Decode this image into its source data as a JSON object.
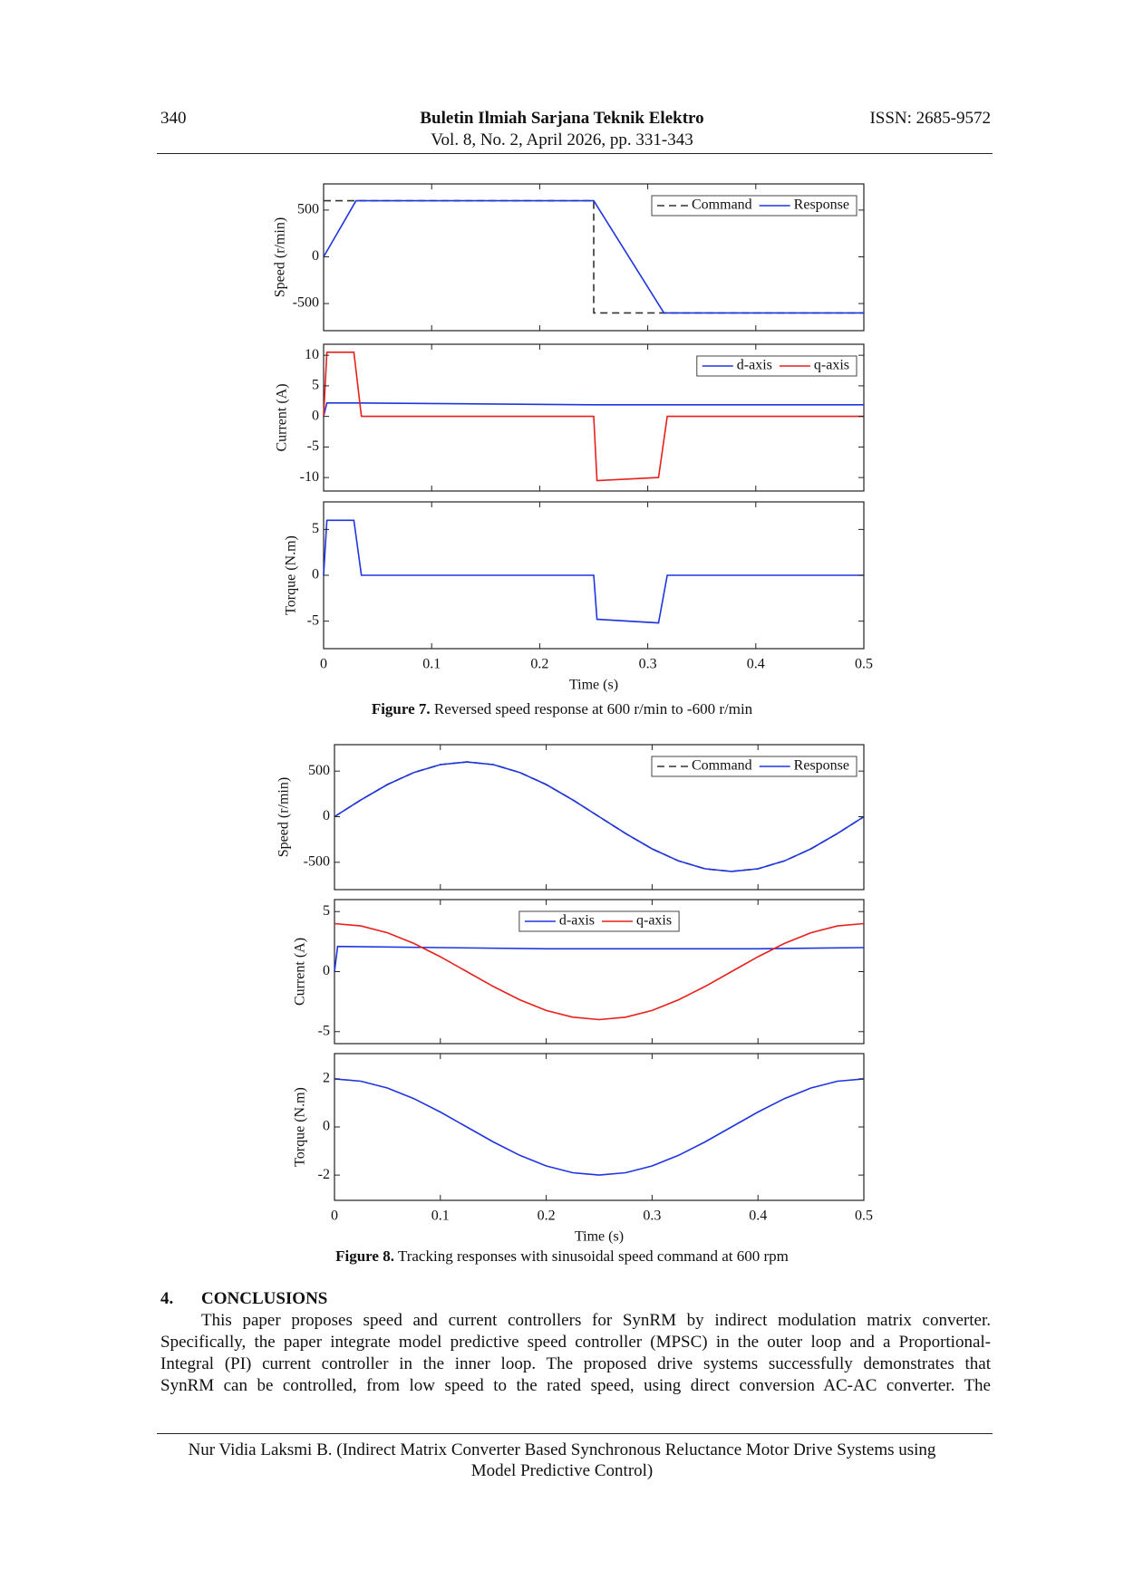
{
  "header": {
    "page": "340",
    "journal": "Buletin Ilmiah Sarjana Teknik Elektro",
    "issn": "ISSN: 2685-9572",
    "volume": "Vol. 8, No. 2, April 2026, pp. 331-343"
  },
  "captions": [
    {
      "label": "Figure 7.",
      "text": " Reversed speed response at 600 r/min to -600 r/min"
    },
    {
      "label": "Figure 8.",
      "text": " Tracking responses with sinusoidal speed command at 600 rpm"
    }
  ],
  "section": {
    "number": "4.",
    "title": "CONCLUSIONS",
    "lines": [
      "This paper proposes speed and current controllers for SynRM by indirect modulation matrix converter.",
      "Specifically, the paper integrate model predictive speed controller (MPSC) in the outer loop and a Proportional-",
      "Integral (PI) current controller in the inner loop. The proposed drive systems successfully demonstrates that",
      "SynRM can be controlled, from low speed to the rated speed, using direct conversion AC-AC converter. The"
    ]
  },
  "footer": {
    "lines": [
      "Nur Vidia Laksmi B. (Indirect Matrix Converter Based Synchronous Reluctance Motor Drive Systems using",
      "Model Predictive Control)"
    ]
  },
  "chart_data": [
    {
      "type": "line",
      "ylabel": "Speed (r/min)",
      "xlim": [
        0,
        0.5
      ],
      "xticks": [
        0,
        0.1,
        0.2,
        0.3,
        0.4,
        0.5
      ],
      "ylim": [
        -790,
        780
      ],
      "yticks": [
        -500,
        0,
        500
      ],
      "legend": "upper right",
      "series": [
        {
          "name": "Command",
          "color": "#333333",
          "linestyle": "dashed",
          "x": [
            0,
            0.25,
            0.25,
            0.5
          ],
          "values": [
            600,
            600,
            -600,
            -600
          ]
        },
        {
          "name": "Response",
          "color": "#1f35e0",
          "linestyle": "solid",
          "x": [
            0,
            0.03,
            0.25,
            0.315,
            0.5
          ],
          "values": [
            0,
            600,
            600,
            -600,
            -600
          ]
        }
      ]
    },
    {
      "type": "line",
      "ylabel": "Current (A)",
      "xlim": [
        0,
        0.5
      ],
      "xticks": [
        0,
        0.1,
        0.2,
        0.3,
        0.4,
        0.5
      ],
      "ylim": [
        -12.2,
        11.8
      ],
      "yticks": [
        -10,
        -5,
        0,
        5,
        10
      ],
      "legend": "upper right",
      "series": [
        {
          "name": "d-axis",
          "color": "#1f35e0",
          "linestyle": "solid",
          "x": [
            0,
            0.003,
            0.03,
            0.25,
            0.5
          ],
          "values": [
            0,
            2.2,
            2.2,
            1.9,
            1.9
          ]
        },
        {
          "name": "q-axis",
          "color": "#e8201c",
          "linestyle": "solid",
          "x": [
            0,
            0.003,
            0.028,
            0.035,
            0.25,
            0.253,
            0.31,
            0.318,
            0.5
          ],
          "values": [
            0,
            10.5,
            10.5,
            0,
            0,
            -10.5,
            -10,
            0,
            0
          ]
        }
      ]
    },
    {
      "type": "line",
      "ylabel": "Torque (N.m)",
      "xlabel": "Time (s)",
      "xlim": [
        0,
        0.5
      ],
      "xticks": [
        0,
        0.1,
        0.2,
        0.3,
        0.4,
        0.5
      ],
      "ylim": [
        -8,
        8
      ],
      "yticks": [
        -5,
        0,
        5
      ],
      "series": [
        {
          "color": "#1f35e0",
          "linestyle": "solid",
          "x": [
            0,
            0.003,
            0.028,
            0.035,
            0.25,
            0.253,
            0.31,
            0.318,
            0.5
          ],
          "values": [
            0,
            6,
            6,
            0,
            0,
            -4.8,
            -5.2,
            0,
            0
          ]
        }
      ]
    },
    {
      "type": "line",
      "ylabel": "Speed (r/min)",
      "xlim": [
        0,
        0.5
      ],
      "xticks": [
        0,
        0.1,
        0.2,
        0.3,
        0.4,
        0.5
      ],
      "ylim": [
        -800,
        790
      ],
      "yticks": [
        -500,
        0,
        500
      ],
      "legend": "upper right",
      "series": [
        {
          "name": "Command",
          "color": "#333333",
          "linestyle": "dashed",
          "x": [
            0,
            0.025,
            0.05,
            0.075,
            0.1,
            0.125,
            0.15,
            0.175,
            0.2,
            0.225,
            0.25,
            0.275,
            0.3,
            0.325,
            0.35,
            0.375,
            0.4,
            0.425,
            0.45,
            0.475,
            0.5
          ],
          "values": [
            0,
            185,
            353,
            485,
            571,
            600,
            571,
            485,
            353,
            185,
            0,
            -185,
            -353,
            -485,
            -571,
            -600,
            -571,
            -485,
            -353,
            -185,
            0
          ]
        },
        {
          "name": "Response",
          "color": "#1f35e0",
          "linestyle": "solid",
          "x": [
            0,
            0.025,
            0.05,
            0.075,
            0.1,
            0.125,
            0.15,
            0.175,
            0.2,
            0.225,
            0.25,
            0.275,
            0.3,
            0.325,
            0.35,
            0.375,
            0.4,
            0.425,
            0.45,
            0.475,
            0.5
          ],
          "values": [
            0,
            185,
            353,
            485,
            571,
            600,
            571,
            485,
            353,
            185,
            0,
            -185,
            -353,
            -485,
            -571,
            -600,
            -571,
            -485,
            -353,
            -185,
            0
          ]
        }
      ]
    },
    {
      "type": "line",
      "ylabel": "Current (A)",
      "xlim": [
        0,
        0.5
      ],
      "xticks": [
        0,
        0.1,
        0.2,
        0.3,
        0.4,
        0.5
      ],
      "ylim": [
        -6,
        6
      ],
      "yticks": [
        -5,
        0,
        5
      ],
      "legend": "upper center",
      "series": [
        {
          "name": "d-axis",
          "color": "#1f35e0",
          "linestyle": "solid",
          "x": [
            0,
            0.003,
            0.1,
            0.2,
            0.3,
            0.4,
            0.5
          ],
          "values": [
            0,
            2.1,
            2,
            1.9,
            1.9,
            1.9,
            2
          ]
        },
        {
          "name": "q-axis",
          "color": "#e8201c",
          "linestyle": "solid",
          "x": [
            0,
            0.025,
            0.05,
            0.075,
            0.1,
            0.125,
            0.15,
            0.175,
            0.2,
            0.225,
            0.25,
            0.275,
            0.3,
            0.325,
            0.35,
            0.375,
            0.4,
            0.425,
            0.45,
            0.475,
            0.5
          ],
          "values": [
            4,
            3.8,
            3.24,
            2.35,
            1.24,
            0,
            -1.24,
            -2.35,
            -3.24,
            -3.8,
            -4,
            -3.8,
            -3.24,
            -2.35,
            -1.24,
            0,
            1.24,
            2.35,
            3.24,
            3.8,
            4
          ]
        }
      ]
    },
    {
      "type": "line",
      "ylabel": "Torque (N.m)",
      "xlabel": "Time (s)",
      "xlim": [
        0,
        0.5
      ],
      "xticks": [
        0,
        0.1,
        0.2,
        0.3,
        0.4,
        0.5
      ],
      "ylim": [
        -3.05,
        3.05
      ],
      "yticks": [
        -2,
        0,
        2
      ],
      "series": [
        {
          "color": "#1f35e0",
          "linestyle": "solid",
          "x": [
            0,
            0.025,
            0.05,
            0.075,
            0.1,
            0.125,
            0.15,
            0.175,
            0.2,
            0.225,
            0.25,
            0.275,
            0.3,
            0.325,
            0.35,
            0.375,
            0.4,
            0.425,
            0.45,
            0.475,
            0.5
          ],
          "values": [
            2,
            1.9,
            1.62,
            1.18,
            0.62,
            0,
            -0.62,
            -1.18,
            -1.62,
            -1.9,
            -2,
            -1.9,
            -1.62,
            -1.18,
            -0.62,
            0,
            0.62,
            1.18,
            1.62,
            1.9,
            2
          ]
        }
      ]
    }
  ]
}
